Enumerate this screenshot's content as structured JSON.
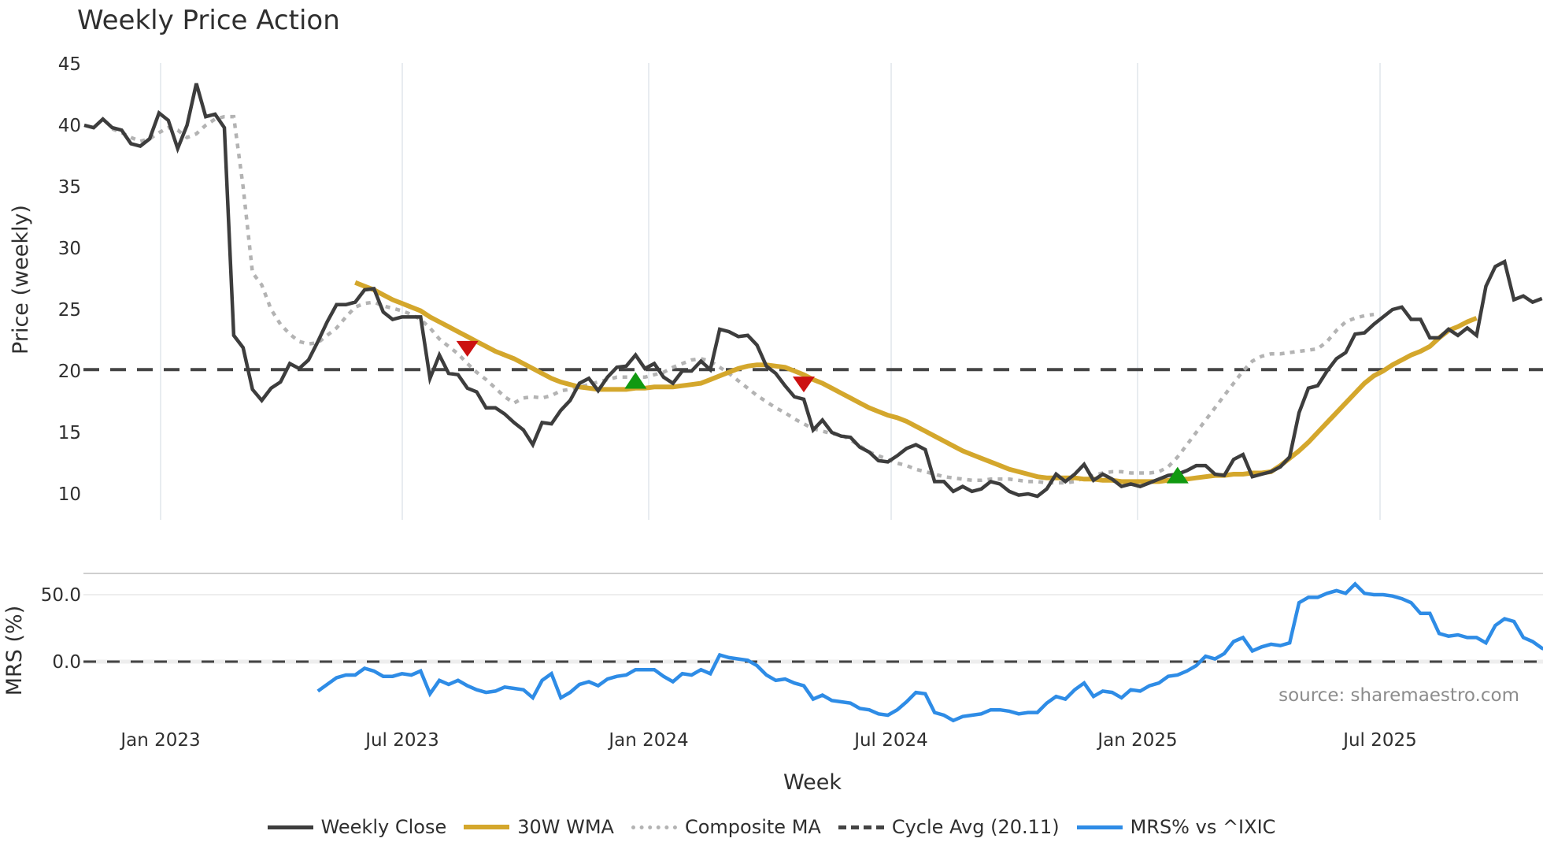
{
  "title": "Weekly Price Action",
  "colors": {
    "weekly_close": "#3d3d3d",
    "wma30": "#d4a72c",
    "composite_ma": "#b3b3b3",
    "cycle_avg": "#444444",
    "mrs": "#2e8ce6",
    "sell_marker": "#cc1111",
    "buy_marker": "#119911",
    "grid": "#e8ecf0"
  },
  "axes": {
    "price": {
      "label": "Price (weekly)",
      "ticks": [
        "45",
        "40",
        "35",
        "30",
        "25",
        "20",
        "15",
        "10"
      ],
      "range": [
        8,
        45.5
      ]
    },
    "mrs": {
      "label": "MRS (%)",
      "ticks": [
        "50.0",
        "0.0"
      ]
    },
    "x": {
      "label": "Week",
      "ticks": [
        "Jan 2023",
        "Jul 2023",
        "Jan 2024",
        "Jul 2024",
        "Jan 2025",
        "Jul 2025"
      ]
    }
  },
  "source": "source: sharemaestro.com",
  "legend": [
    {
      "label": "Weekly Close",
      "key": "weekly_close",
      "style": "solid"
    },
    {
      "label": "30W WMA",
      "key": "wma30",
      "style": "solid"
    },
    {
      "label": "Composite MA",
      "key": "composite_ma",
      "style": "dotted"
    },
    {
      "label": "Cycle Avg (20.11)",
      "key": "cycle_avg",
      "style": "dashed"
    },
    {
      "label": "MRS% vs ^IXIC",
      "key": "mrs",
      "style": "solid"
    }
  ],
  "chart_data": {
    "type": "line",
    "title": "Weekly Price Action",
    "xlabel": "Week",
    "ylabel": "Price (weekly)",
    "ylim": [
      8,
      45.5
    ],
    "x_start": "2022-11 (approx)",
    "x_step": "1 week",
    "x_ticks": [
      "Jan 2023",
      "Jul 2023",
      "Jan 2024",
      "Jul 2024",
      "Jan 2025",
      "Jul 2025"
    ],
    "cycle_avg": 20.11,
    "series": [
      {
        "name": "Weekly Close",
        "start_index": 0,
        "values": [
          40.0,
          39.8,
          40.5,
          39.8,
          39.6,
          38.5,
          38.3,
          38.9,
          41.0,
          40.4,
          38.1,
          40.0,
          43.4,
          40.7,
          40.9,
          39.8,
          22.9,
          21.9,
          18.5,
          17.6,
          18.6,
          19.1,
          20.6,
          20.2,
          20.9,
          22.4,
          24.0,
          25.4,
          25.4,
          25.6,
          26.6,
          26.7,
          24.8,
          24.2,
          24.4,
          24.4,
          24.4,
          19.4,
          21.3,
          19.8,
          19.7,
          18.6,
          18.3,
          17.0,
          17.0,
          16.5,
          15.8,
          15.2,
          14.0,
          15.8,
          15.7,
          16.8,
          17.6,
          19.0,
          19.4,
          18.4,
          19.5,
          20.3,
          20.4,
          21.3,
          20.2,
          20.6,
          19.5,
          19.0,
          20.0,
          20.0,
          20.8,
          20.1,
          23.4,
          23.2,
          22.8,
          22.9,
          22.1,
          20.4,
          19.8,
          18.8,
          17.9,
          17.7,
          15.2,
          16.0,
          15.0,
          14.7,
          14.6,
          13.8,
          13.4,
          12.7,
          12.6,
          13.1,
          13.7,
          14.0,
          13.6,
          11.0,
          11.0,
          10.2,
          10.6,
          10.2,
          10.4,
          11.0,
          10.8,
          10.2,
          9.9,
          10.0,
          9.8,
          10.4,
          11.6,
          11.0,
          11.6,
          12.4,
          11.1,
          11.6,
          11.2,
          10.6,
          10.8,
          10.6,
          10.9,
          11.2,
          11.5,
          11.6,
          11.9,
          12.3,
          12.3,
          11.6,
          11.5,
          12.8,
          13.2,
          11.4,
          11.6,
          11.8,
          12.2,
          13.0,
          16.6,
          18.6,
          18.8,
          20.0,
          21.0,
          21.5,
          23.0,
          23.1,
          23.8,
          24.4,
          25.0,
          25.2,
          24.2,
          24.2,
          22.7,
          22.7,
          23.4,
          22.9,
          23.5,
          22.9,
          26.9,
          28.5,
          28.9,
          25.8,
          26.1,
          25.6,
          25.9
        ]
      },
      {
        "name": "30W WMA",
        "start_index": 29,
        "values": [
          27.2,
          26.9,
          26.6,
          26.2,
          25.8,
          25.5,
          25.2,
          24.9,
          24.4,
          24.0,
          23.6,
          23.2,
          22.8,
          22.4,
          22.0,
          21.6,
          21.3,
          21.0,
          20.6,
          20.2,
          19.8,
          19.4,
          19.1,
          18.9,
          18.7,
          18.6,
          18.5,
          18.5,
          18.5,
          18.5,
          18.6,
          18.6,
          18.7,
          18.7,
          18.7,
          18.8,
          18.9,
          19.0,
          19.3,
          19.6,
          19.9,
          20.2,
          20.4,
          20.5,
          20.5,
          20.4,
          20.3,
          20.0,
          19.7,
          19.3,
          19.0,
          18.6,
          18.2,
          17.8,
          17.4,
          17.0,
          16.7,
          16.4,
          16.2,
          15.9,
          15.5,
          15.1,
          14.7,
          14.3,
          13.9,
          13.5,
          13.2,
          12.9,
          12.6,
          12.3,
          12.0,
          11.8,
          11.6,
          11.4,
          11.3,
          11.3,
          11.3,
          11.3,
          11.2,
          11.2,
          11.1,
          11.1,
          11.0,
          11.0,
          11.0,
          11.0,
          11.0,
          11.1,
          11.2,
          11.2,
          11.3,
          11.4,
          11.5,
          11.5,
          11.6,
          11.6,
          11.7,
          11.7,
          11.8,
          12.3,
          12.9,
          13.5,
          14.2,
          15.0,
          15.8,
          16.6,
          17.4,
          18.2,
          19.0,
          19.6,
          20.0,
          20.5,
          20.9,
          21.3,
          21.6,
          22.0,
          22.7,
          23.3,
          23.6,
          24.0,
          24.3
        ]
      },
      {
        "name": "Composite MA",
        "start_index": 3,
        "values": [
          39.7,
          39.4,
          39.0,
          38.7,
          38.9,
          39.4,
          39.8,
          39.6,
          39.0,
          39.3,
          40.0,
          40.5,
          40.7,
          40.7,
          35.0,
          28.0,
          27.0,
          25.0,
          23.8,
          23.0,
          22.4,
          22.2,
          22.3,
          22.9,
          23.5,
          24.4,
          25.2,
          25.5,
          25.6,
          25.3,
          25.1,
          24.9,
          24.6,
          24.2,
          23.5,
          22.6,
          22.0,
          21.4,
          20.6,
          19.9,
          19.3,
          18.6,
          17.9,
          17.4,
          17.8,
          17.9,
          17.8,
          18.0,
          18.4,
          18.5,
          18.7,
          18.9,
          19.1,
          19.3,
          19.5,
          19.5,
          19.5,
          19.5,
          19.7,
          19.9,
          20.3,
          20.6,
          20.9,
          21.0,
          20.8,
          20.3,
          19.8,
          19.2,
          18.6,
          18.0,
          17.5,
          17.0,
          16.6,
          16.1,
          15.7,
          15.3,
          15.1,
          14.9,
          14.8,
          14.4,
          13.9,
          13.4,
          13.1,
          12.8,
          12.5,
          12.3,
          12.0,
          11.8,
          11.6,
          11.4,
          11.3,
          11.2,
          11.1,
          11.1,
          11.2,
          11.2,
          11.2,
          11.1,
          11.0,
          11.0,
          10.9,
          10.9,
          10.9,
          11.0,
          11.3,
          11.5,
          11.7,
          11.8,
          11.8,
          11.7,
          11.7,
          11.7,
          11.8,
          12.2,
          13.0,
          14.0,
          15.0,
          16.0,
          17.0,
          18.0,
          19.0,
          20.0,
          20.8,
          21.2,
          21.4,
          21.4,
          21.5,
          21.6,
          21.7,
          21.8,
          22.4,
          23.3,
          24.0,
          24.3,
          24.5,
          24.6
        ]
      },
      {
        "name": "MRS% vs ^IXIC",
        "start_index": 25,
        "values": [
          -22,
          -17,
          -12,
          -10,
          -10,
          -5,
          -7,
          -11,
          -11,
          -9,
          -10,
          -7,
          -24,
          -14,
          -17,
          -14,
          -18,
          -21,
          -23,
          -22,
          -19,
          -20,
          -21,
          -27,
          -14,
          -9,
          -27,
          -23,
          -17,
          -15,
          -18,
          -13,
          -11,
          -10,
          -6,
          -6,
          -6,
          -11,
          -15,
          -9,
          -10,
          -6,
          -9,
          5,
          3,
          2,
          1,
          -3,
          -10,
          -14,
          -13,
          -16,
          -18,
          -28,
          -25,
          -29,
          -30,
          -31,
          -35,
          -36,
          -39,
          -40,
          -36,
          -30,
          -23,
          -24,
          -38,
          -40,
          -44,
          -41,
          -40,
          -39,
          -36,
          -36,
          -37,
          -39,
          -38,
          -38,
          -31,
          -26,
          -28,
          -21,
          -16,
          -26,
          -22,
          -23,
          -27,
          -21,
          -22,
          -18,
          -16,
          -11,
          -10,
          -7,
          -3,
          4,
          2,
          6,
          15,
          18,
          8,
          11,
          13,
          12,
          14,
          44,
          48,
          48,
          51,
          53,
          51,
          58,
          51,
          50,
          50,
          49,
          47,
          44,
          36,
          36,
          21,
          19,
          20,
          18,
          18,
          14,
          27,
          32,
          30,
          18,
          15,
          10,
          8
        ]
      }
    ],
    "markers": [
      {
        "type": "sell",
        "index": 41,
        "value": 21.8
      },
      {
        "type": "buy",
        "index": 59,
        "value": 19.2
      },
      {
        "type": "sell",
        "index": 77,
        "value": 18.9
      },
      {
        "type": "buy",
        "index": 117,
        "value": 11.5
      }
    ]
  }
}
